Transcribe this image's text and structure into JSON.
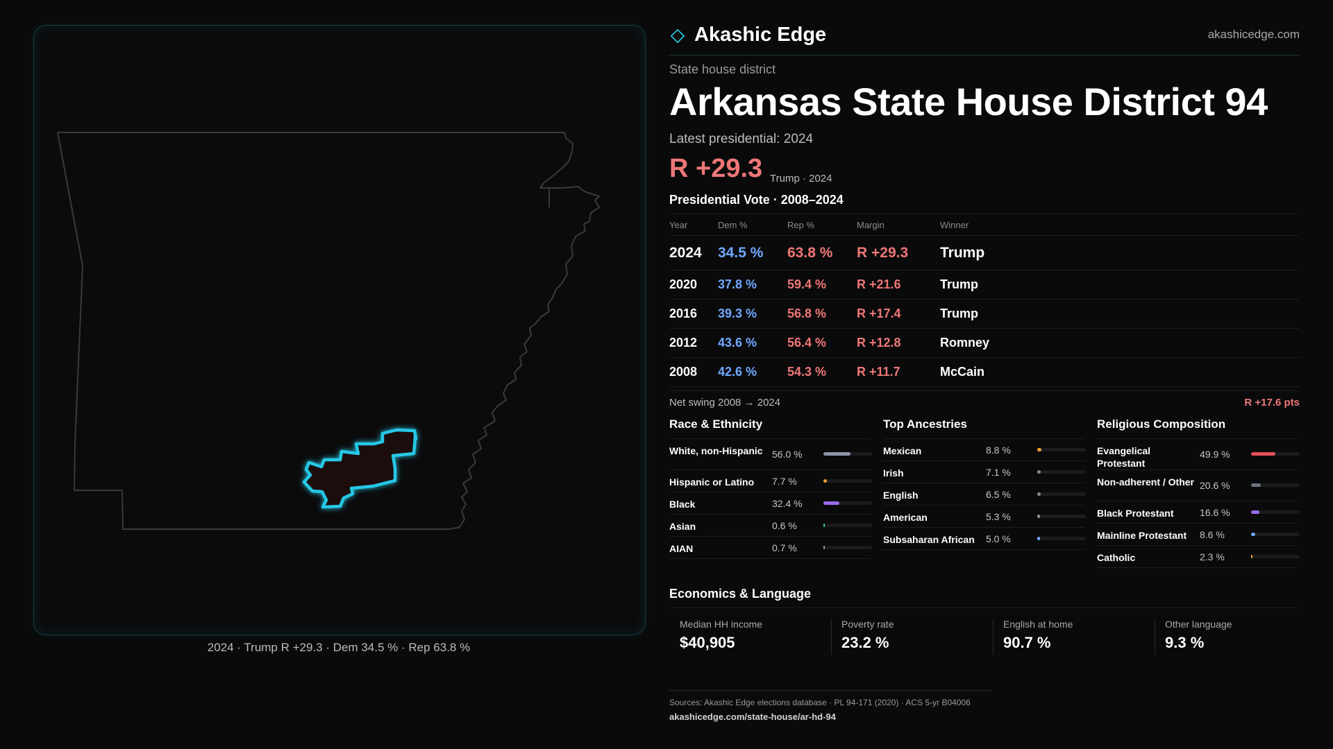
{
  "brand": {
    "name": "Akashic Edge",
    "site": "akashicedge.com",
    "logo_icon": "diamond-outline-icon",
    "accent": "#28c8e6"
  },
  "header": {
    "type_label": "State house district",
    "title": "Arkansas State House District 94",
    "latest": "Latest presidential: 2024",
    "margin": "R +29.3",
    "margin_sub": "Trump · 2024"
  },
  "votes": {
    "title": "Presidential Vote · 2008–2024",
    "columns": [
      "Year",
      "Dem %",
      "Rep %",
      "Margin",
      "Winner"
    ],
    "rows": [
      {
        "year": "2024",
        "dem": "34.5 %",
        "rep": "63.8 %",
        "margin": "R +29.3",
        "winner": "Trump"
      },
      {
        "year": "2020",
        "dem": "37.8 %",
        "rep": "59.4 %",
        "margin": "R +21.6",
        "winner": "Trump"
      },
      {
        "year": "2016",
        "dem": "39.3 %",
        "rep": "56.8 %",
        "margin": "R +17.4",
        "winner": "Trump"
      },
      {
        "year": "2012",
        "dem": "43.6 %",
        "rep": "56.4 %",
        "margin": "R +12.8",
        "winner": "Romney"
      },
      {
        "year": "2008",
        "dem": "42.6 %",
        "rep": "54.3 %",
        "margin": "R +11.7",
        "winner": "McCain"
      }
    ],
    "swing_label": "Net swing 2008 → 2024",
    "swing_value": "R +17.6 pts"
  },
  "race": {
    "title": "Race & Ethnicity",
    "items": [
      {
        "label": "White, non-Hispanic",
        "pct": "56.0 %",
        "value": 56.0,
        "color": "#8c96a8"
      },
      {
        "label": "Hispanic or Latino",
        "pct": "7.7 %",
        "value": 7.7,
        "color": "#f0a030"
      },
      {
        "label": "Black",
        "pct": "32.4 %",
        "value": 32.4,
        "color": "#9a6cf0"
      },
      {
        "label": "Asian",
        "pct": "0.6 %",
        "value": 0.6,
        "color": "#2ec4b6"
      },
      {
        "label": "AIAN",
        "pct": "0.7 %",
        "value": 0.7,
        "color": "#9a9a9a"
      }
    ]
  },
  "ancestry": {
    "title": "Top Ancestries",
    "items": [
      {
        "label": "Mexican",
        "pct": "8.8 %",
        "value": 8.8,
        "color": "#f0a030"
      },
      {
        "label": "Irish",
        "pct": "7.1 %",
        "value": 7.1,
        "color": "#8c8c8c"
      },
      {
        "label": "English",
        "pct": "6.5 %",
        "value": 6.5,
        "color": "#8c8c8c"
      },
      {
        "label": "American",
        "pct": "5.3 %",
        "value": 5.3,
        "color": "#8c8c8c"
      },
      {
        "label": "Subsaharan African",
        "pct": "5.0 %",
        "value": 5.0,
        "color": "#6fa8ff"
      }
    ]
  },
  "religion": {
    "title": "Religious Composition",
    "items": [
      {
        "label": "Evangelical Protestant",
        "pct": "49.9 %",
        "value": 49.9,
        "color": "#e8505a"
      },
      {
        "label": "Non-adherent / Other",
        "pct": "20.6 %",
        "value": 20.6,
        "color": "#6a7480"
      },
      {
        "label": "Black Protestant",
        "pct": "16.6 %",
        "value": 16.6,
        "color": "#9a6cf0"
      },
      {
        "label": "Mainline Protestant",
        "pct": "8.6 %",
        "value": 8.6,
        "color": "#6fa8ff"
      },
      {
        "label": "Catholic",
        "pct": "2.3 %",
        "value": 2.3,
        "color": "#f0a030"
      }
    ]
  },
  "economics": {
    "title": "Economics & Language",
    "items": [
      {
        "label": "Median HH income",
        "value": "$40,905"
      },
      {
        "label": "Poverty rate",
        "value": "23.2 %"
      },
      {
        "label": "English at home",
        "value": "90.7 %"
      },
      {
        "label": "Other language",
        "value": "9.3 %"
      }
    ]
  },
  "map": {
    "caption": "2024 · Trump R +29.3 · Dem 34.5 % · Rep 63.8 %",
    "district_color": "#28c8e6",
    "state_color": "#3a3a3e"
  },
  "footer": {
    "sources": "Sources: Akashic Edge elections database · PL 94-171 (2020) · ACS 5-yr B04006",
    "url": "akashicedge.com/state-house/ar-hd-94"
  }
}
